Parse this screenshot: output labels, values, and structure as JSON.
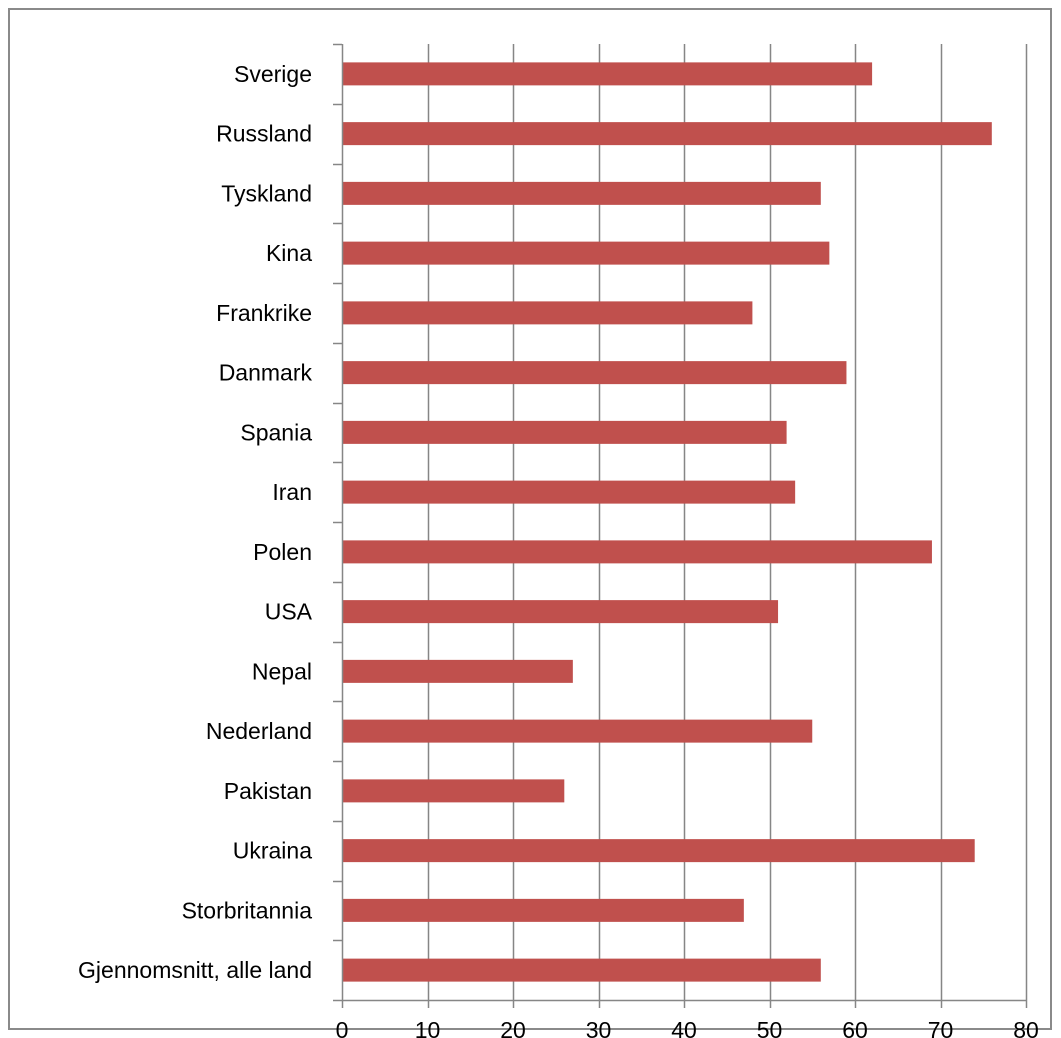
{
  "chart_data": {
    "type": "bar",
    "orientation": "horizontal",
    "categories": [
      "Sverige",
      "Russland",
      "Tyskland",
      "Kina",
      "Frankrike",
      "Danmark",
      "Spania",
      "Iran",
      "Polen",
      "USA",
      "Nepal",
      "Nederland",
      "Pakistan",
      "Ukraina",
      "Storbritannia",
      "Gjennomsnitt, alle land"
    ],
    "values": [
      62,
      76,
      56,
      57,
      48,
      59,
      52,
      53,
      69,
      51,
      27,
      55,
      26,
      74,
      47,
      56
    ],
    "xlim": [
      0,
      80
    ],
    "xticks": [
      0,
      10,
      20,
      30,
      40,
      50,
      60,
      70,
      80
    ],
    "title": "",
    "xlabel": "",
    "ylabel": "",
    "grid": "vertical",
    "legend": "none",
    "bar_color": "#c0504d",
    "grid_color": "#868686"
  }
}
